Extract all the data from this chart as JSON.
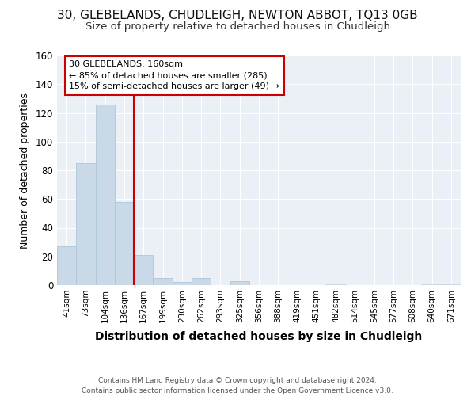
{
  "title": "30, GLEBELANDS, CHUDLEIGH, NEWTON ABBOT, TQ13 0GB",
  "subtitle": "Size of property relative to detached houses in Chudleigh",
  "xlabel": "Distribution of detached houses by size in Chudleigh",
  "ylabel": "Number of detached properties",
  "bin_labels": [
    "41sqm",
    "73sqm",
    "104sqm",
    "136sqm",
    "167sqm",
    "199sqm",
    "230sqm",
    "262sqm",
    "293sqm",
    "325sqm",
    "356sqm",
    "388sqm",
    "419sqm",
    "451sqm",
    "482sqm",
    "514sqm",
    "545sqm",
    "577sqm",
    "608sqm",
    "640sqm",
    "671sqm"
  ],
  "bar_values": [
    27,
    85,
    126,
    58,
    21,
    5,
    2,
    5,
    0,
    3,
    0,
    0,
    0,
    0,
    1,
    0,
    0,
    0,
    0,
    1,
    1
  ],
  "bar_color": "#c9d9e8",
  "bar_edgecolor": "#aec6d8",
  "vline_color": "#cc0000",
  "annotation_text": "30 GLEBELANDS: 160sqm\n← 85% of detached houses are smaller (285)\n15% of semi-detached houses are larger (49) →",
  "annotation_box_color": "#ffffff",
  "annotation_box_edgecolor": "#cc0000",
  "bg_color": "#eaf0f6",
  "footer_line1": "Contains HM Land Registry data © Crown copyright and database right 2024.",
  "footer_line2": "Contains public sector information licensed under the Open Government Licence v3.0.",
  "ylim": [
    0,
    160
  ],
  "title_fontsize": 11,
  "subtitle_fontsize": 9.5,
  "xlabel_fontsize": 10,
  "ylabel_fontsize": 9
}
